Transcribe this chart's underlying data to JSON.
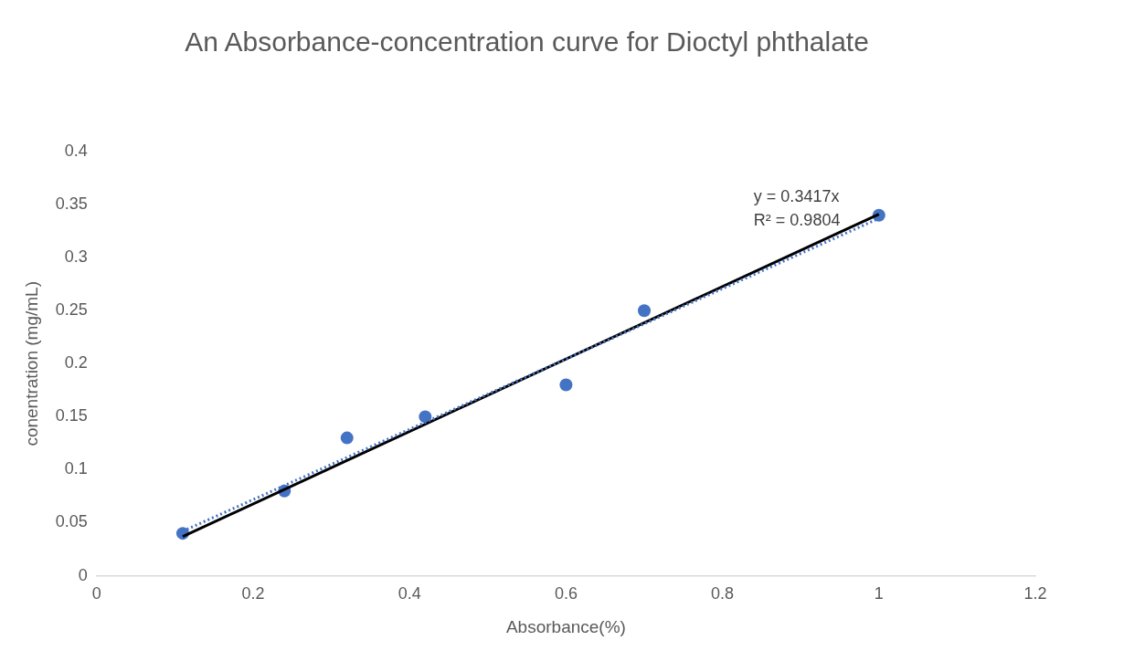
{
  "chart_data": {
    "type": "scatter",
    "title": "An Absorbance-concentration curve for Dioctyl phthalate",
    "xlabel": "Absorbance(%)",
    "ylabel": "conentration (mg/mL)",
    "xlim": [
      0,
      1.2
    ],
    "xticks": [
      0,
      0.2,
      0.4,
      0.6,
      0.8,
      1,
      1.2
    ],
    "ylim": [
      0,
      0.4
    ],
    "yticks": [
      0,
      0.05,
      0.1,
      0.15,
      0.2,
      0.25,
      0.3,
      0.35,
      0.4
    ],
    "grid": false,
    "legend": false,
    "marker": "circle",
    "series": [
      {
        "type": "line",
        "color": "#4472c4",
        "line_style": "dotted",
        "marker": "none",
        "x": [
          0.11,
          1
        ],
        "values": [
          0.042,
          0.337
        ]
      },
      {
        "type": "line",
        "color": "#000000",
        "line_style": "solid",
        "marker": "none",
        "x": [
          0.11,
          1
        ],
        "values": [
          0.037,
          0.341
        ]
      },
      {
        "color": "#4472c4",
        "x": [
          0.11,
          0.24,
          0.32,
          0.42,
          0.6,
          0.7,
          1
        ],
        "values": [
          0.04,
          0.08,
          0.13,
          0.15,
          0.18,
          0.25,
          0.34
        ]
      }
    ],
    "annotations": [
      "y = 0.3417x",
      "R² = 0.9804"
    ]
  }
}
